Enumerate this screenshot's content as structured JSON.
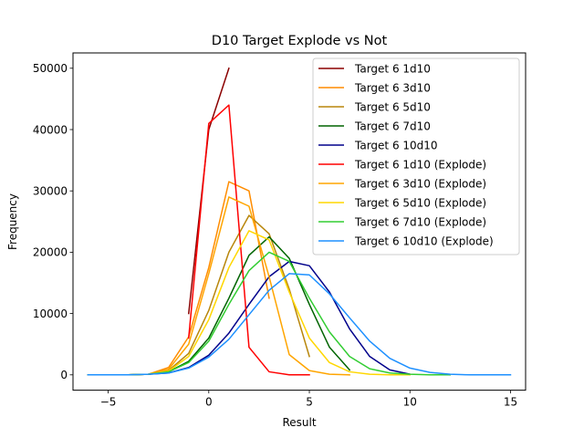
{
  "chart_data": {
    "type": "line",
    "title": "D10 Target Explode vs Not",
    "xlabel": "Result",
    "ylabel": "Frequency",
    "xlim": [
      -6.75,
      15.75
    ],
    "ylim": [
      -2500,
      52500
    ],
    "xticks": [
      -5,
      0,
      5,
      10,
      15
    ],
    "yticks": [
      0,
      10000,
      20000,
      30000,
      40000,
      50000
    ],
    "legend_position": "upper right",
    "grid": false,
    "series": [
      {
        "name": "Target 6 1d10",
        "color": "#8b0000",
        "x": [
          -1,
          0,
          1
        ],
        "y": [
          10000,
          40000,
          50000
        ]
      },
      {
        "name": "Target 6 3d10",
        "color": "#ff8c00",
        "x": [
          -3,
          -2,
          -1,
          0,
          1,
          2,
          3
        ],
        "y": [
          100,
          1200,
          6200,
          17500,
          31500,
          30000,
          12500
        ]
      },
      {
        "name": "Target 6 5d10",
        "color": "#b8860b",
        "x": [
          -5,
          -4,
          -3,
          -2,
          -1,
          0,
          1,
          2,
          3,
          4,
          5
        ],
        "y": [
          0,
          0,
          100,
          700,
          3500,
          10500,
          20000,
          26000,
          23000,
          14000,
          3000
        ]
      },
      {
        "name": "Target 6 7d10",
        "color": "#006400",
        "x": [
          -6,
          -5,
          -4,
          -3,
          -2,
          -1,
          0,
          1,
          2,
          3,
          4,
          5,
          6,
          7
        ],
        "y": [
          0,
          0,
          0,
          100,
          500,
          2200,
          6000,
          12500,
          19500,
          22500,
          19000,
          11500,
          4500,
          800
        ]
      },
      {
        "name": "Target 6 10d10",
        "color": "#00008b",
        "x": [
          -6,
          -5,
          -4,
          -3,
          -2,
          -1,
          0,
          1,
          2,
          3,
          4,
          5,
          6,
          7,
          8,
          9,
          10
        ],
        "y": [
          0,
          0,
          0,
          100,
          300,
          1200,
          3200,
          6800,
          11500,
          16000,
          18500,
          17800,
          13500,
          7500,
          3000,
          800,
          100
        ]
      },
      {
        "name": "Target 6 1d10 (Explode)",
        "color": "#ff0000",
        "x": [
          -1,
          0,
          1,
          2,
          3,
          4,
          5
        ],
        "y": [
          6000,
          41000,
          44000,
          4500,
          500,
          0,
          0
        ]
      },
      {
        "name": "Target 6 3d10 (Explode)",
        "color": "#ffa500",
        "x": [
          -3,
          -2,
          -1,
          0,
          1,
          2,
          3,
          4,
          5,
          6,
          7
        ],
        "y": [
          100,
          900,
          5000,
          16500,
          29000,
          27500,
          16000,
          3300,
          700,
          100,
          0
        ]
      },
      {
        "name": "Target 6 5d10 (Explode)",
        "color": "#ffd700",
        "x": [
          -5,
          -4,
          -3,
          -2,
          -1,
          0,
          1,
          2,
          3,
          4,
          5,
          6,
          7,
          8,
          9,
          10
        ],
        "y": [
          0,
          0,
          100,
          600,
          3000,
          9000,
          17500,
          23500,
          22000,
          13500,
          6000,
          2000,
          500,
          100,
          0,
          0
        ]
      },
      {
        "name": "Target 6 7d10 (Explode)",
        "color": "#32cd32",
        "x": [
          -6,
          -5,
          -4,
          -3,
          -2,
          -1,
          0,
          1,
          2,
          3,
          4,
          5,
          6,
          7,
          8,
          9,
          10,
          11,
          12
        ],
        "y": [
          0,
          0,
          0,
          100,
          500,
          2000,
          5500,
          11500,
          17000,
          20000,
          18500,
          12500,
          7000,
          3000,
          1000,
          300,
          100,
          0,
          0
        ]
      },
      {
        "name": "Target 6 10d10 (Explode)",
        "color": "#1e90ff",
        "x": [
          -6,
          -5,
          -4,
          -3,
          -2,
          -1,
          0,
          1,
          2,
          3,
          4,
          5,
          6,
          7,
          8,
          9,
          10,
          11,
          12,
          13,
          14,
          15
        ],
        "y": [
          0,
          0,
          0,
          100,
          300,
          1100,
          2900,
          5800,
          9800,
          13800,
          16500,
          16300,
          13200,
          9300,
          5500,
          2700,
          1100,
          400,
          100,
          0,
          0,
          0
        ]
      }
    ]
  }
}
